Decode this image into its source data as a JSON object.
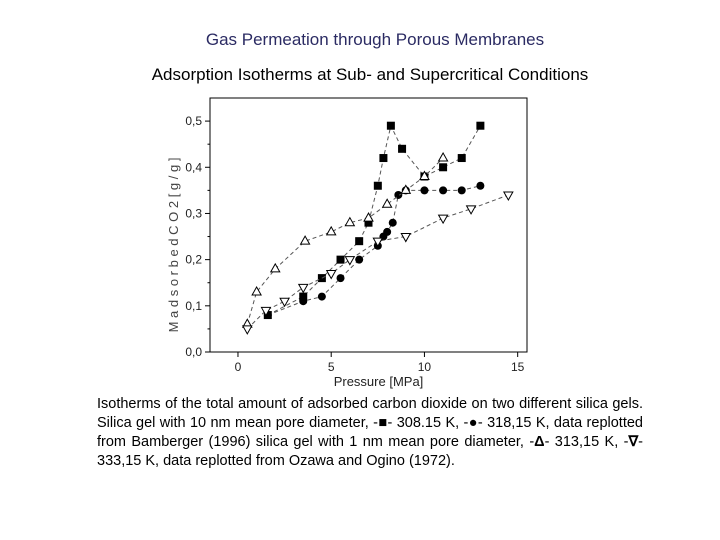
{
  "page": {
    "title": "Gas Permeation through Porous Membranes",
    "subtitle": "Adsorption Isotherms at Sub- and Supercritical Conditions"
  },
  "caption": {
    "part1": "Isotherms of the total amount of adsorbed carbon dioxide on two different silica gels. Silica gel with 10 nm mean pore diameter, -",
    "sym1": "■",
    "part2": "- 308.15 K, -",
    "sym2": "●",
    "part3": "- 318,15 K, data replotted from Bamberger (1996) silica gel with 1 nm mean pore diameter, -",
    "sym3": "Δ",
    "part4": "- 313,15 K, -",
    "sym4": "∇",
    "part5": "- 333,15 K, data replotted from Ozawa and Ogino (1972)."
  },
  "chart_data": {
    "type": "scatter",
    "xlabel": "Pressure [MPa]",
    "ylabel": "M a d s o r b e d C O 2 [ g / g ]",
    "xlim": [
      -1.5,
      15.5
    ],
    "ylim": [
      0.0,
      0.55
    ],
    "xticks": [
      "0",
      "5",
      "10",
      "15"
    ],
    "xtick_values": [
      0,
      5,
      10,
      15
    ],
    "yticks": [
      "0,0",
      "0,1",
      "0,2",
      "0,3",
      "0,4",
      "0,5"
    ],
    "ytick_values": [
      0.0,
      0.1,
      0.2,
      0.3,
      0.4,
      0.5
    ],
    "series": [
      {
        "marker": "square",
        "x": [
          1.6,
          3.5,
          4.5,
          5.5,
          6.5,
          7.0,
          7.5,
          7.8,
          8.2,
          8.8,
          10.0,
          11.0,
          12.0,
          13.0
        ],
        "y": [
          0.08,
          0.12,
          0.16,
          0.2,
          0.24,
          0.28,
          0.36,
          0.42,
          0.49,
          0.44,
          0.38,
          0.4,
          0.42,
          0.49
        ]
      },
      {
        "marker": "circle",
        "x": [
          1.6,
          3.5,
          4.5,
          5.5,
          6.5,
          7.5,
          7.8,
          8.0,
          8.3,
          8.6,
          9.0,
          10.0,
          11.0,
          12.0,
          13.0
        ],
        "y": [
          0.08,
          0.11,
          0.12,
          0.16,
          0.2,
          0.23,
          0.25,
          0.26,
          0.28,
          0.34,
          0.35,
          0.35,
          0.35,
          0.35,
          0.36
        ]
      },
      {
        "marker": "triangle-up",
        "x": [
          0.5,
          1.0,
          2.0,
          3.6,
          5.0,
          6.0,
          7.0,
          8.0,
          9.0,
          10.0,
          11.0
        ],
        "y": [
          0.06,
          0.13,
          0.18,
          0.24,
          0.26,
          0.28,
          0.29,
          0.32,
          0.35,
          0.38,
          0.42
        ]
      },
      {
        "marker": "triangle-down",
        "x": [
          0.5,
          1.5,
          2.5,
          3.5,
          5.0,
          6.0,
          7.5,
          9.0,
          11.0,
          12.5,
          14.5
        ],
        "y": [
          0.05,
          0.09,
          0.11,
          0.14,
          0.17,
          0.2,
          0.24,
          0.25,
          0.29,
          0.31,
          0.34
        ]
      }
    ]
  }
}
